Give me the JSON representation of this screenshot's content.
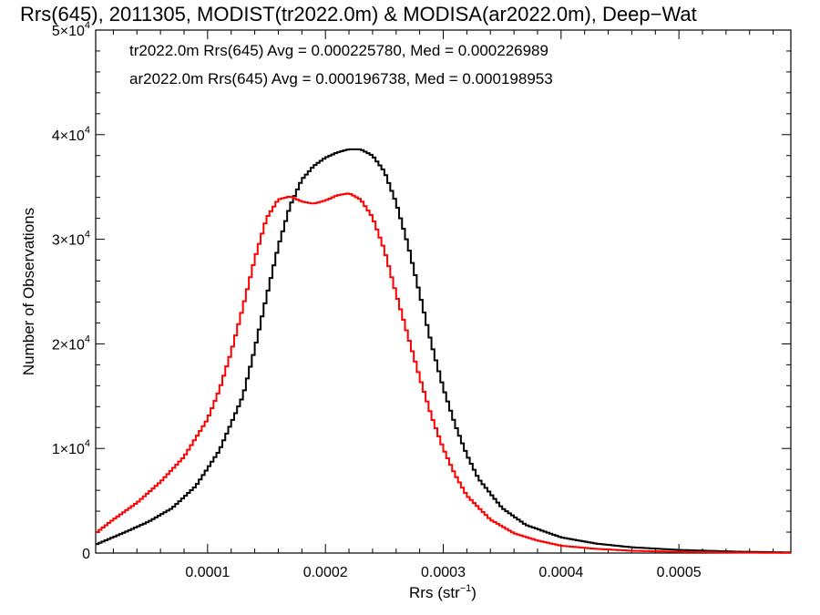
{
  "chart_data": {
    "type": "line",
    "title": "Rrs(645), 2011305, MODIST(tr2022.0m) & MODISA(ar2022.0m), Deep−Wat",
    "xlabel_main": "Rrs (str",
    "xlabel_sup": "−1",
    "xlabel_end": ")",
    "ylabel": "Number of Observations",
    "xlim": [
      5e-06,
      0.000595
    ],
    "ylim": [
      0,
      50000
    ],
    "x_ticks": [
      {
        "value": 0.0001,
        "label": "0.0001"
      },
      {
        "value": 0.0002,
        "label": "0.0002"
      },
      {
        "value": 0.0003,
        "label": "0.0003"
      },
      {
        "value": 0.0004,
        "label": "0.0004"
      },
      {
        "value": 0.0005,
        "label": "0.0005"
      }
    ],
    "y_ticks": [
      {
        "value": 0,
        "mant": "0",
        "exp": ""
      },
      {
        "value": 10000,
        "mant": "1×10",
        "exp": "4"
      },
      {
        "value": 20000,
        "mant": "2×10",
        "exp": "4"
      },
      {
        "value": 30000,
        "mant": "3×10",
        "exp": "4"
      },
      {
        "value": 40000,
        "mant": "4×10",
        "exp": "4"
      },
      {
        "value": 50000,
        "mant": "5×10",
        "exp": "4"
      }
    ],
    "legend": [
      {
        "text": "tr2022.0m Rrs(645) Avg = 0.000225780, Med = 0.000226989",
        "color": "#000000"
      },
      {
        "text": "ar2022.0m Rrs(645) Avg = 0.000196738, Med = 0.000198953",
        "color": "#ff0000"
      }
    ],
    "series": [
      {
        "color": "#000000",
        "x": [
          5e-06,
          3e-05,
          5e-05,
          7e-05,
          9e-05,
          0.00011,
          0.00013,
          0.00014,
          0.00015,
          0.00016,
          0.00017,
          0.00018,
          0.00019,
          0.0002,
          0.00021,
          0.00022,
          0.00023,
          0.00024,
          0.00025,
          0.00026,
          0.00027,
          0.00028,
          0.00029,
          0.0003,
          0.00031,
          0.00032,
          0.00033,
          0.00035,
          0.00037,
          0.0004,
          0.00043,
          0.00046,
          0.0005,
          0.00055,
          0.000595
        ],
        "y": [
          800,
          2000,
          3000,
          4300,
          6400,
          9800,
          15000,
          19500,
          24500,
          29300,
          33200,
          35700,
          37000,
          37800,
          38300,
          38600,
          38600,
          38000,
          36500,
          33500,
          29500,
          24800,
          20000,
          15800,
          12300,
          9400,
          7100,
          4300,
          2700,
          1500,
          900,
          550,
          300,
          130,
          60
        ]
      },
      {
        "color": "#ff0000",
        "x": [
          5e-06,
          2e-05,
          4e-05,
          6e-05,
          8e-05,
          0.0001,
          0.00011,
          0.00012,
          0.00013,
          0.00014,
          0.00015,
          0.00016,
          0.00017,
          0.00018,
          0.00019,
          0.0002,
          0.00021,
          0.00022,
          0.00023,
          0.00024,
          0.00025,
          0.00026,
          0.00027,
          0.00028,
          0.00029,
          0.0003,
          0.00031,
          0.00032,
          0.00034,
          0.00036,
          0.00038,
          0.0004,
          0.00043,
          0.00046,
          0.0005,
          0.00055,
          0.000595
        ],
        "y": [
          1900,
          3200,
          4800,
          6800,
          9200,
          12800,
          15600,
          19200,
          23500,
          28100,
          32000,
          33800,
          34100,
          33600,
          33400,
          33700,
          34200,
          34400,
          33800,
          32100,
          29000,
          24800,
          20800,
          16800,
          13100,
          10000,
          7500,
          5500,
          3200,
          1900,
          1200,
          700,
          400,
          220,
          110,
          50,
          20
        ]
      }
    ]
  }
}
